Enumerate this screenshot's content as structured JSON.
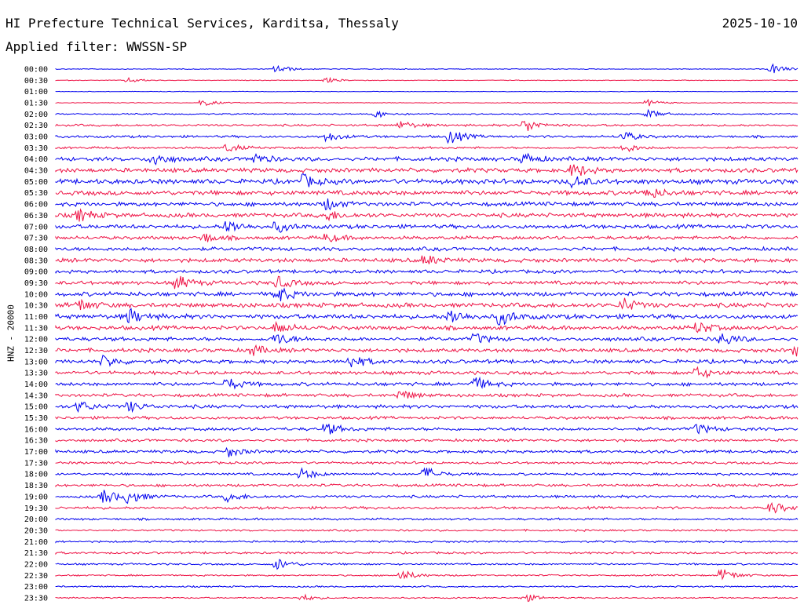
{
  "header": {
    "station": "HI Prefecture Technical Services, Karditsa, Thessaly",
    "date": "2025-10-10",
    "filter": "Applied filter: WWSSN-SP"
  },
  "chart_data": {
    "type": "helicorder",
    "channel_label": "HNZ - 20000",
    "row_labels": [
      "00:00",
      "00:30",
      "01:00",
      "01:30",
      "02:00",
      "02:30",
      "03:00",
      "03:30",
      "04:00",
      "04:30",
      "05:00",
      "05:30",
      "06:00",
      "06:30",
      "07:00",
      "07:30",
      "08:00",
      "08:30",
      "09:00",
      "09:30",
      "10:00",
      "10:30",
      "11:00",
      "11:30",
      "12:00",
      "12:30",
      "13:00",
      "13:30",
      "14:00",
      "14:30",
      "15:00",
      "15:30",
      "16:00",
      "16:30",
      "17:00",
      "17:30",
      "18:00",
      "18:30",
      "19:00",
      "19:30",
      "20:00",
      "20:30",
      "21:00",
      "21:30",
      "22:00",
      "22:30",
      "23:00",
      "23:30"
    ],
    "trace_colors": [
      "#0000ee",
      "#ee1144"
    ],
    "noise_amplitude": [
      0.6,
      0.5,
      0.4,
      0.5,
      1.0,
      1.6,
      1.8,
      1.6,
      3.0,
      3.2,
      3.6,
      3.4,
      3.0,
      3.2,
      3.0,
      2.6,
      2.8,
      3.0,
      2.6,
      2.8,
      3.2,
      3.4,
      3.4,
      3.0,
      2.8,
      2.8,
      2.8,
      2.6,
      2.6,
      2.4,
      2.6,
      2.2,
      2.4,
      2.0,
      2.2,
      1.8,
      1.8,
      2.0,
      2.0,
      2.0,
      1.6,
      1.4,
      1.4,
      1.6,
      1.4,
      1.2,
      1.2,
      1.0
    ],
    "events": [
      {
        "row": 0,
        "minute": 9,
        "amp": 5
      },
      {
        "row": 0,
        "minute": 29,
        "amp": 6
      },
      {
        "row": 1,
        "minute": 3,
        "amp": 3
      },
      {
        "row": 1,
        "minute": 11,
        "amp": 3
      },
      {
        "row": 3,
        "minute": 6,
        "amp": 4
      },
      {
        "row": 3,
        "minute": 24,
        "amp": 4
      },
      {
        "row": 4,
        "minute": 13,
        "amp": 4
      },
      {
        "row": 4,
        "minute": 24,
        "amp": 5
      },
      {
        "row": 5,
        "minute": 14,
        "amp": 5
      },
      {
        "row": 5,
        "minute": 19,
        "amp": 9
      },
      {
        "row": 6,
        "minute": 11,
        "amp": 6
      },
      {
        "row": 6,
        "minute": 16,
        "amp": 9
      },
      {
        "row": 6,
        "minute": 23,
        "amp": 6
      },
      {
        "row": 7,
        "minute": 7,
        "amp": 5
      },
      {
        "row": 7,
        "minute": 23,
        "amp": 6
      },
      {
        "row": 8,
        "minute": 4,
        "amp": 8
      },
      {
        "row": 8,
        "minute": 8,
        "amp": 7
      },
      {
        "row": 8,
        "minute": 19,
        "amp": 6
      },
      {
        "row": 9,
        "minute": 21,
        "amp": 8
      },
      {
        "row": 10,
        "minute": 10,
        "amp": 8
      },
      {
        "row": 10,
        "minute": 21,
        "amp": 7
      },
      {
        "row": 11,
        "minute": 24,
        "amp": 7
      },
      {
        "row": 12,
        "minute": 11,
        "amp": 7
      },
      {
        "row": 13,
        "minute": 1,
        "amp": 7
      },
      {
        "row": 13,
        "minute": 11,
        "amp": 6
      },
      {
        "row": 14,
        "minute": 7,
        "amp": 8
      },
      {
        "row": 14,
        "minute": 9,
        "amp": 6
      },
      {
        "row": 15,
        "minute": 6,
        "amp": 6
      },
      {
        "row": 15,
        "minute": 11,
        "amp": 5
      },
      {
        "row": 17,
        "minute": 15,
        "amp": 6
      },
      {
        "row": 19,
        "minute": 5,
        "amp": 8
      },
      {
        "row": 19,
        "minute": 9,
        "amp": 7
      },
      {
        "row": 20,
        "minute": 9,
        "amp": 9
      },
      {
        "row": 21,
        "minute": 1,
        "amp": 7
      },
      {
        "row": 21,
        "minute": 23,
        "amp": 8
      },
      {
        "row": 22,
        "minute": 3,
        "amp": 9
      },
      {
        "row": 22,
        "minute": 16,
        "amp": 9
      },
      {
        "row": 22,
        "minute": 18,
        "amp": 10
      },
      {
        "row": 23,
        "minute": 9,
        "amp": 7
      },
      {
        "row": 23,
        "minute": 26,
        "amp": 7
      },
      {
        "row": 24,
        "minute": 9,
        "amp": 7
      },
      {
        "row": 24,
        "minute": 17,
        "amp": 6
      },
      {
        "row": 24,
        "minute": 27,
        "amp": 8
      },
      {
        "row": 25,
        "minute": 8,
        "amp": 6
      },
      {
        "row": 25,
        "minute": 30,
        "amp": 7
      },
      {
        "row": 26,
        "minute": 2,
        "amp": 7
      },
      {
        "row": 26,
        "minute": 12,
        "amp": 8
      },
      {
        "row": 27,
        "minute": 26,
        "amp": 7
      },
      {
        "row": 28,
        "minute": 7,
        "amp": 7
      },
      {
        "row": 28,
        "minute": 17,
        "amp": 8
      },
      {
        "row": 29,
        "minute": 14,
        "amp": 6
      },
      {
        "row": 30,
        "minute": 1,
        "amp": 7
      },
      {
        "row": 30,
        "minute": 3,
        "amp": 6
      },
      {
        "row": 32,
        "minute": 11,
        "amp": 7
      },
      {
        "row": 32,
        "minute": 26,
        "amp": 6
      },
      {
        "row": 34,
        "minute": 7,
        "amp": 6
      },
      {
        "row": 36,
        "minute": 10,
        "amp": 7
      },
      {
        "row": 36,
        "minute": 15,
        "amp": 8
      },
      {
        "row": 38,
        "minute": 2,
        "amp": 9
      },
      {
        "row": 38,
        "minute": 3,
        "amp": 8
      },
      {
        "row": 38,
        "minute": 7,
        "amp": 6
      },
      {
        "row": 39,
        "minute": 29,
        "amp": 7
      },
      {
        "row": 44,
        "minute": 9,
        "amp": 7
      },
      {
        "row": 45,
        "minute": 14,
        "amp": 7
      },
      {
        "row": 45,
        "minute": 27,
        "amp": 8
      },
      {
        "row": 47,
        "minute": 10,
        "amp": 4
      },
      {
        "row": 47,
        "minute": 19,
        "amp": 5
      }
    ]
  }
}
